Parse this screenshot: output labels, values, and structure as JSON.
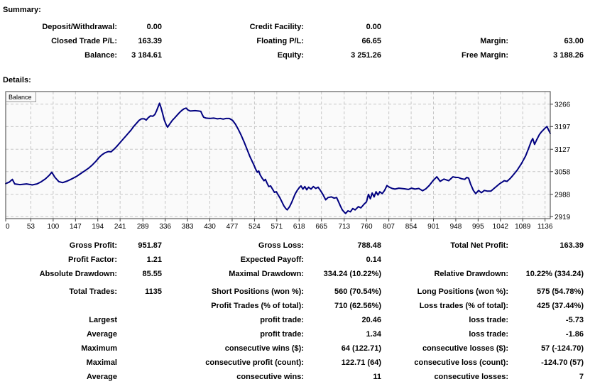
{
  "summary": {
    "title": "Summary:",
    "rows": [
      [
        "Deposit/Withdrawal:",
        "0.00",
        "Credit Facility:",
        "0.00",
        "",
        ""
      ],
      [
        "Closed Trade P/L:",
        "163.39",
        "Floating P/L:",
        "66.65",
        "Margin:",
        "63.00"
      ],
      [
        "Balance:",
        "3 184.61",
        "Equity:",
        "3 251.26",
        "Free Margin:",
        "3 188.26"
      ]
    ]
  },
  "details": {
    "title": "Details:"
  },
  "stats": {
    "rows_top": [
      [
        "Gross Profit:",
        "951.87",
        "Gross Loss:",
        "788.48",
        "Total Net Profit:",
        "163.39"
      ],
      [
        "Profit Factor:",
        "1.21",
        "Expected Payoff:",
        "0.14",
        "",
        ""
      ],
      [
        "Absolute Drawdown:",
        "85.55",
        "Maximal Drawdown:",
        "334.24 (10.22%)",
        "Relative Drawdown:",
        "10.22% (334.24)"
      ]
    ],
    "rows_bottom": [
      [
        "Total Trades:",
        "1135",
        "Short Positions (won %):",
        "560 (70.54%)",
        "Long Positions (won %):",
        "575 (54.78%)"
      ],
      [
        "",
        "",
        "Profit Trades (% of total):",
        "710 (62.56%)",
        "Loss trades (% of total):",
        "425 (37.44%)"
      ],
      [
        "Largest",
        "",
        "profit trade:",
        "20.46",
        "loss trade:",
        "-5.73"
      ],
      [
        "Average",
        "",
        "profit trade:",
        "1.34",
        "loss trade:",
        "-1.86"
      ],
      [
        "Maximum",
        "",
        "consecutive wins ($):",
        "64 (122.71)",
        "consecutive losses ($):",
        "57 (-124.70)"
      ],
      [
        "Maximal",
        "",
        "consecutive profit (count):",
        "122.71 (64)",
        "consecutive loss (count):",
        "-124.70 (57)"
      ],
      [
        "Average",
        "",
        "consecutive wins:",
        "11",
        "consecutive losses:",
        "7"
      ]
    ]
  },
  "chart_data": {
    "type": "line",
    "title": "",
    "series_label": "Balance",
    "xlabel": "",
    "ylabel": "",
    "x_ticks": [
      0,
      53,
      100,
      147,
      194,
      241,
      289,
      336,
      383,
      430,
      477,
      524,
      571,
      618,
      665,
      713,
      760,
      807,
      854,
      901,
      948,
      995,
      1042,
      1089,
      1136
    ],
    "y_ticks": [
      3266,
      3197,
      3127,
      3058,
      2988,
      2919
    ],
    "xlim": [
      0,
      1147
    ],
    "ylim": [
      2913,
      3305
    ],
    "grid": true,
    "legend_position": "top-left",
    "colors": {
      "line": "#000080",
      "plot_bg": "#fafafa",
      "grid": "#c6c6c6",
      "border": "#3c3c3c",
      "text": "#000000"
    },
    "points": [
      [
        0,
        3021
      ],
      [
        8,
        3026
      ],
      [
        14,
        3034
      ],
      [
        19,
        3020
      ],
      [
        30,
        3018
      ],
      [
        44,
        3020
      ],
      [
        56,
        3017
      ],
      [
        66,
        3020
      ],
      [
        74,
        3026
      ],
      [
        84,
        3036
      ],
      [
        92,
        3047
      ],
      [
        97,
        3056
      ],
      [
        104,
        3040
      ],
      [
        112,
        3027
      ],
      [
        120,
        3024
      ],
      [
        130,
        3029
      ],
      [
        140,
        3036
      ],
      [
        150,
        3044
      ],
      [
        158,
        3052
      ],
      [
        166,
        3060
      ],
      [
        174,
        3068
      ],
      [
        182,
        3078
      ],
      [
        190,
        3090
      ],
      [
        197,
        3102
      ],
      [
        203,
        3110
      ],
      [
        209,
        3116
      ],
      [
        216,
        3120
      ],
      [
        222,
        3119
      ],
      [
        228,
        3127
      ],
      [
        234,
        3136
      ],
      [
        240,
        3146
      ],
      [
        246,
        3156
      ],
      [
        252,
        3166
      ],
      [
        258,
        3176
      ],
      [
        264,
        3186
      ],
      [
        270,
        3198
      ],
      [
        276,
        3208
      ],
      [
        281,
        3216
      ],
      [
        286,
        3221
      ],
      [
        292,
        3221
      ],
      [
        296,
        3217
      ],
      [
        300,
        3224
      ],
      [
        305,
        3230
      ],
      [
        310,
        3229
      ],
      [
        314,
        3234
      ],
      [
        318,
        3246
      ],
      [
        321,
        3258
      ],
      [
        324,
        3269
      ],
      [
        327,
        3256
      ],
      [
        330,
        3240
      ],
      [
        334,
        3218
      ],
      [
        338,
        3203
      ],
      [
        341,
        3195
      ],
      [
        346,
        3206
      ],
      [
        351,
        3216
      ],
      [
        356,
        3224
      ],
      [
        361,
        3232
      ],
      [
        366,
        3240
      ],
      [
        371,
        3247
      ],
      [
        376,
        3252
      ],
      [
        380,
        3254
      ],
      [
        384,
        3248
      ],
      [
        389,
        3245
      ],
      [
        399,
        3246
      ],
      [
        406,
        3245
      ],
      [
        411,
        3244
      ],
      [
        414,
        3234
      ],
      [
        417,
        3226
      ],
      [
        422,
        3223
      ],
      [
        430,
        3222
      ],
      [
        438,
        3223
      ],
      [
        446,
        3221
      ],
      [
        452,
        3222
      ],
      [
        458,
        3220
      ],
      [
        464,
        3222
      ],
      [
        471,
        3222
      ],
      [
        478,
        3216
      ],
      [
        484,
        3204
      ],
      [
        490,
        3188
      ],
      [
        496,
        3170
      ],
      [
        502,
        3150
      ],
      [
        508,
        3128
      ],
      [
        514,
        3106
      ],
      [
        519,
        3090
      ],
      [
        523,
        3078
      ],
      [
        527,
        3064
      ],
      [
        530,
        3056
      ],
      [
        533,
        3060
      ],
      [
        536,
        3048
      ],
      [
        540,
        3038
      ],
      [
        544,
        3030
      ],
      [
        547,
        3034
      ],
      [
        550,
        3024
      ],
      [
        554,
        3012
      ],
      [
        558,
        3014
      ],
      [
        562,
        3004
      ],
      [
        566,
        2994
      ],
      [
        570,
        2996
      ],
      [
        574,
        2986
      ],
      [
        578,
        2976
      ],
      [
        582,
        2964
      ],
      [
        586,
        2952
      ],
      [
        590,
        2944
      ],
      [
        593,
        2940
      ],
      [
        598,
        2950
      ],
      [
        602,
        2962
      ],
      [
        606,
        2976
      ],
      [
        610,
        2990
      ],
      [
        614,
        3000
      ],
      [
        618,
        3008
      ],
      [
        622,
        3014
      ],
      [
        626,
        3004
      ],
      [
        630,
        3012
      ],
      [
        634,
        3002
      ],
      [
        638,
        3010
      ],
      [
        643,
        3004
      ],
      [
        648,
        3012
      ],
      [
        653,
        3006
      ],
      [
        658,
        3010
      ],
      [
        663,
        3000
      ],
      [
        668,
        2988
      ],
      [
        674,
        2971
      ],
      [
        679,
        2978
      ],
      [
        686,
        2980
      ],
      [
        692,
        2976
      ],
      [
        697,
        2978
      ],
      [
        701,
        2965
      ],
      [
        705,
        2952
      ],
      [
        709,
        2940
      ],
      [
        713,
        2933
      ],
      [
        716,
        2929
      ],
      [
        721,
        2937
      ],
      [
        726,
        2934
      ],
      [
        731,
        2944
      ],
      [
        736,
        2940
      ],
      [
        743,
        2950
      ],
      [
        748,
        2946
      ],
      [
        755,
        2958
      ],
      [
        760,
        2965
      ],
      [
        764,
        2988
      ],
      [
        768,
        2974
      ],
      [
        772,
        2992
      ],
      [
        776,
        2980
      ],
      [
        780,
        2996
      ],
      [
        784,
        2986
      ],
      [
        788,
        2996
      ],
      [
        793,
        2990
      ],
      [
        798,
        3000
      ],
      [
        803,
        3015
      ],
      [
        808,
        3010
      ],
      [
        814,
        3006
      ],
      [
        820,
        3004
      ],
      [
        828,
        3007
      ],
      [
        840,
        3005
      ],
      [
        848,
        3003
      ],
      [
        855,
        3007
      ],
      [
        862,
        3004
      ],
      [
        870,
        3006
      ],
      [
        878,
        2999
      ],
      [
        885,
        3005
      ],
      [
        892,
        3015
      ],
      [
        900,
        3030
      ],
      [
        908,
        3042
      ],
      [
        915,
        3028
      ],
      [
        923,
        3035
      ],
      [
        933,
        3030
      ],
      [
        942,
        3042
      ],
      [
        948,
        3040
      ],
      [
        953,
        3040
      ],
      [
        960,
        3036
      ],
      [
        967,
        3034
      ],
      [
        971,
        3040
      ],
      [
        975,
        3038
      ],
      [
        979,
        3020
      ],
      [
        985,
        3000
      ],
      [
        990,
        2990
      ],
      [
        996,
        3000
      ],
      [
        1002,
        2993
      ],
      [
        1008,
        3000
      ],
      [
        1014,
        2998
      ],
      [
        1022,
        2998
      ],
      [
        1030,
        3008
      ],
      [
        1040,
        3020
      ],
      [
        1046,
        3026
      ],
      [
        1050,
        3030
      ],
      [
        1056,
        3028
      ],
      [
        1062,
        3036
      ],
      [
        1068,
        3046
      ],
      [
        1077,
        3062
      ],
      [
        1086,
        3082
      ],
      [
        1095,
        3106
      ],
      [
        1102,
        3132
      ],
      [
        1107,
        3152
      ],
      [
        1110,
        3160
      ],
      [
        1114,
        3142
      ],
      [
        1118,
        3155
      ],
      [
        1124,
        3172
      ],
      [
        1128,
        3180
      ],
      [
        1132,
        3186
      ],
      [
        1136,
        3192
      ],
      [
        1140,
        3197
      ],
      [
        1143,
        3188
      ],
      [
        1147,
        3176
      ]
    ]
  }
}
